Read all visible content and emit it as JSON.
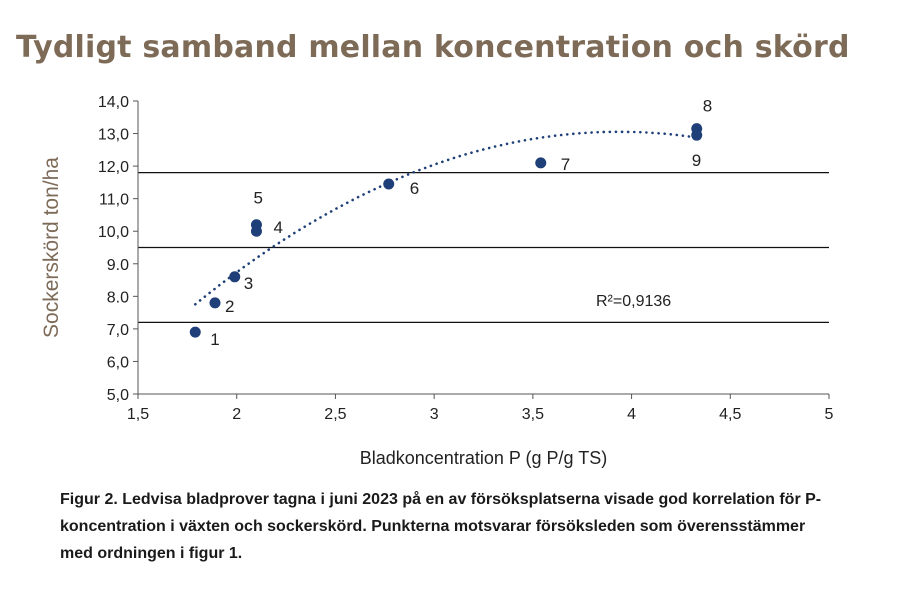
{
  "figure": {
    "title": "Tydligt samband mellan koncentration och skörd",
    "caption": "Figur 2. Ledvisa bladprover tagna i juni 2023 på en av försöksplatserna visade god korrelation för P-koncentration i växten och sockerskörd. Punkterna motsvarar försöksleden som överensstämmer med ordningen i figur 1.",
    "colors": {
      "title": "#7d6b58",
      "marker": "#1f3f78",
      "axis": "#555555",
      "ylabel": "#7d6b58",
      "text": "#222222"
    }
  },
  "chart_data": {
    "type": "scatter",
    "title": "Tydligt samband mellan koncentration och skörd",
    "xlabel": "Bladkoncentration P (g P/g TS)",
    "ylabel": "Sockerskörd ton/ha",
    "xlim": [
      1.5,
      5
    ],
    "ylim": [
      5.0,
      14.0
    ],
    "x_ticks": [
      1.5,
      2,
      2.5,
      3,
      3.5,
      4,
      4.5,
      5
    ],
    "x_tick_labels": [
      "1,5",
      "2",
      "2,5",
      "3",
      "3,5",
      "4",
      "4,5",
      "5"
    ],
    "y_ticks": [
      5,
      6,
      7,
      8,
      9,
      10,
      11,
      12,
      13,
      14
    ],
    "y_tick_labels": [
      "5,0",
      "6,0",
      "7,0",
      "8.0",
      "9.0",
      "10,0",
      "11,0",
      "12,0",
      "13,0",
      "14,0"
    ],
    "gridlines_y": [
      7.2,
      9.5,
      11.8
    ],
    "points": [
      {
        "label": "1",
        "x": 1.79,
        "y": 6.9
      },
      {
        "label": "2",
        "x": 1.89,
        "y": 7.8
      },
      {
        "label": "3",
        "x": 1.99,
        "y": 8.6
      },
      {
        "label": "4",
        "x": 2.1,
        "y": 10.0
      },
      {
        "label": "5",
        "x": 2.1,
        "y": 10.2
      },
      {
        "label": "6",
        "x": 2.77,
        "y": 11.45
      },
      {
        "label": "7",
        "x": 3.54,
        "y": 12.1
      },
      {
        "label": "8",
        "x": 4.33,
        "y": 13.15
      },
      {
        "label": "9",
        "x": 4.33,
        "y": 12.95
      }
    ],
    "trendline": {
      "type": "polynomial",
      "style": "dotted",
      "x_range": [
        1.79,
        4.33
      ],
      "r2_label": "R²=0,9136"
    }
  }
}
